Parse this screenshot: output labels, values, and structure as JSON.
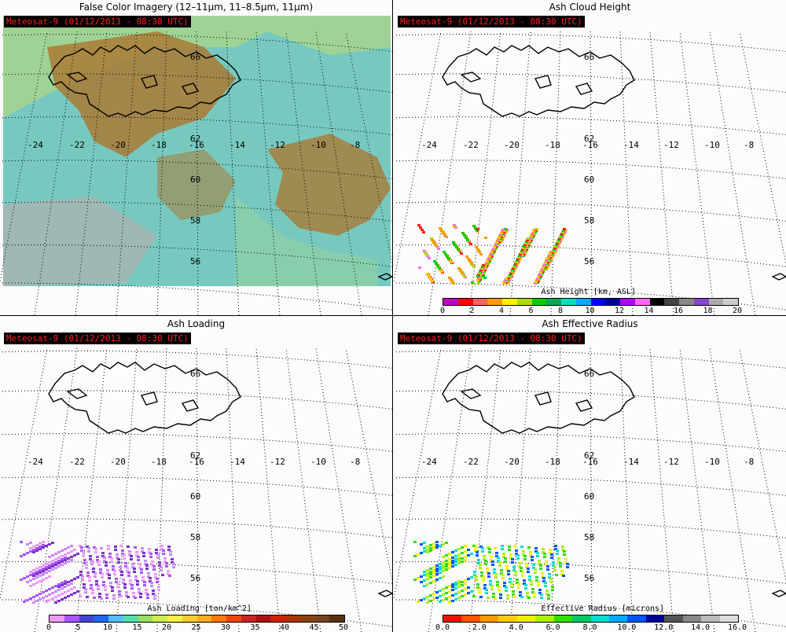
{
  "panels": [
    {
      "id": "false-color",
      "title": "False Color Imagery (12–11µm, 11–8.5µm, 11µm)",
      "stamp": "Meteosat-9  (01/12/2013 - 08:30 UTC)",
      "colors": {
        "base": "#77c9c0",
        "plume": "#a97a34",
        "green": "#a9d68a",
        "pink": "#c9a7a8",
        "stamp_text": "#ff2020"
      }
    },
    {
      "id": "ash-height",
      "title": "Ash Cloud Height",
      "stamp": "Meteosat-9  (01/12/2013 - 08:30 UTC)",
      "colorbar": {
        "title": "Ash Height [km, ASL]",
        "ticks": [
          "0",
          "2",
          "4",
          "6",
          "8",
          "10",
          "12",
          "14",
          "16",
          "18",
          "20"
        ],
        "colors": [
          "#c000c0",
          "#ff0000",
          "#ff6060",
          "#ff9900",
          "#ffee00",
          "#aadd00",
          "#00cc00",
          "#00aa55",
          "#00e0c0",
          "#00aaff",
          "#0000ff",
          "#000099",
          "#b000ff",
          "#ff66ff",
          "#000000",
          "#444444",
          "#888888",
          "#8844cc",
          "#aaaaaa",
          "#cccccc"
        ]
      }
    },
    {
      "id": "ash-loading",
      "title": "Ash Loading",
      "stamp": "Meteosat-9  (01/12/2013 - 08:30 UTC)",
      "colorbar": {
        "title": "Ash Loading [ton/km^2]",
        "ticks": [
          "0",
          "5",
          "10",
          "15",
          "20",
          "25",
          "30",
          "35",
          "40",
          "45",
          "50"
        ],
        "colors": [
          "#ee99ff",
          "#aa55ff",
          "#4444cc",
          "#2266ee",
          "#55bbff",
          "#55ddaa",
          "#99dd66",
          "#ccee55",
          "#ffee44",
          "#ffcc33",
          "#ffaa22",
          "#ff7711",
          "#ee4411",
          "#cc2222",
          "#aa1111",
          "#cc2200",
          "#aa3300",
          "#884411",
          "#774422",
          "#553311"
        ]
      }
    },
    {
      "id": "effective-radius",
      "title": "Ash Effective Radius",
      "stamp": "Meteosat-9  (01/12/2013 - 08:30 UTC)",
      "colorbar": {
        "title": "Effective Radius [microns]",
        "ticks": [
          "0.0",
          "2.0",
          "4.0",
          "6.0",
          "8.0",
          "10.0",
          "12.0",
          "14.0",
          "16.0"
        ],
        "colors": [
          "#ee1100",
          "#ff5500",
          "#ff9900",
          "#ffcc00",
          "#eeee00",
          "#aaee00",
          "#33dd00",
          "#00cc66",
          "#00ddcc",
          "#00aaff",
          "#0055ff",
          "#000099",
          "#555555",
          "#888888",
          "#bbbbbb",
          "#dddddd"
        ]
      }
    }
  ],
  "map": {
    "lon_labels": [
      "-24",
      "-22",
      "-20",
      "-18",
      "-16",
      "-14",
      "-12",
      "-10",
      "-8"
    ],
    "lat_labels": [
      "62",
      "60",
      "58",
      "56"
    ],
    "lat_top_label": "66"
  }
}
